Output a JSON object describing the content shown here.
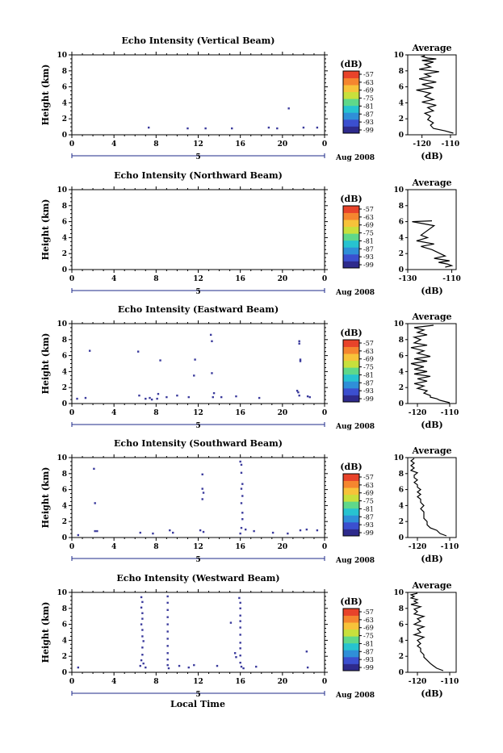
{
  "page": {
    "footer_label": "Local Time",
    "date_label": "Aug 2008",
    "day_label": "5"
  },
  "colorbar": {
    "unit": "(dB)",
    "ticks": [
      "-57",
      "-63",
      "-69",
      "-75",
      "-81",
      "-87",
      "-93",
      "-99"
    ],
    "colors": [
      "#2e2a8c",
      "#3b4fcf",
      "#2f8fd8",
      "#27c3d0",
      "#5fd88a",
      "#c8e03c",
      "#f7c33a",
      "#f5862f",
      "#e8432a"
    ]
  },
  "chart_data": [
    {
      "type": "heatmap",
      "title": "Echo Intensity (Vertical Beam)",
      "xlabel": "",
      "ylabel": "Height (km)",
      "xlim": [
        0,
        24
      ],
      "ylim": [
        0,
        10
      ],
      "xticks": [
        "0",
        "4",
        "8",
        "12",
        "16",
        "20",
        "0"
      ],
      "yticks": [
        "0",
        "2",
        "4",
        "6",
        "8",
        "10"
      ],
      "echoes": [
        [
          7.3,
          0.9
        ],
        [
          11.0,
          0.8
        ],
        [
          12.7,
          0.8
        ],
        [
          15.2,
          0.8
        ],
        [
          18.7,
          0.9
        ],
        [
          19.5,
          0.8
        ],
        [
          20.6,
          3.3
        ],
        [
          22.0,
          0.9
        ],
        [
          23.3,
          0.9
        ]
      ],
      "profile": {
        "title": "Average",
        "xlabel": "(dB)",
        "xlim": [
          -125,
          -108
        ],
        "xticks": [
          "-120",
          "-110"
        ],
        "yticks": [
          "0",
          "2",
          "4",
          "6",
          "8",
          "10"
        ],
        "x": [
          -109,
          -112,
          -116,
          -117,
          -116,
          -118,
          -117,
          -119,
          -116,
          -118,
          -115,
          -120,
          -116,
          -119,
          -117,
          -122,
          -116,
          -120,
          -115,
          -121,
          -117,
          -119,
          -114,
          -121,
          -117,
          -119,
          -116,
          -120,
          -115,
          -118,
          -120,
          -119
        ],
        "y": [
          0.2,
          0.5,
          0.8,
          1.2,
          1.5,
          1.9,
          2.3,
          2.7,
          3.0,
          3.4,
          3.7,
          4.1,
          4.4,
          4.8,
          5.2,
          5.6,
          5.9,
          6.3,
          6.6,
          7.0,
          7.3,
          7.6,
          7.9,
          8.2,
          8.5,
          8.8,
          9.1,
          9.3,
          9.5,
          9.6,
          9.8,
          9.9
        ]
      }
    },
    {
      "type": "heatmap",
      "title": "Echo Intensity (Northward Beam)",
      "xlabel": "",
      "ylabel": "Height (km)",
      "xlim": [
        0,
        24
      ],
      "ylim": [
        0,
        10
      ],
      "xticks": [
        "0",
        "4",
        "8",
        "12",
        "16",
        "20",
        "0"
      ],
      "yticks": [
        "0",
        "2",
        "4",
        "6",
        "8",
        "10"
      ],
      "echoes": [],
      "profile": {
        "title": "Average",
        "xlabel": "(dB)",
        "xlim": [
          -130,
          -108
        ],
        "xticks": [
          "-130",
          "-110"
        ],
        "yticks": [
          "0",
          "2",
          "4",
          "6",
          "8",
          "10"
        ],
        "x": [
          -113,
          -110,
          -112,
          -116,
          -111,
          -118,
          -113,
          -119,
          -124,
          -118,
          -126,
          -121,
          -124,
          -118,
          -124,
          -128,
          -119
        ],
        "y": [
          0.3,
          0.5,
          0.7,
          0.9,
          1.1,
          1.4,
          1.7,
          2.5,
          2.9,
          3.2,
          3.6,
          4.0,
          4.3,
          5.5,
          5.8,
          6.0,
          6.1
        ]
      }
    },
    {
      "type": "heatmap",
      "title": "Echo Intensity (Eastward Beam)",
      "xlabel": "",
      "ylabel": "Height (km)",
      "xlim": [
        0,
        24
      ],
      "ylim": [
        0,
        10
      ],
      "xticks": [
        "0",
        "4",
        "8",
        "12",
        "16",
        "20",
        "0"
      ],
      "yticks": [
        "0",
        "2",
        "4",
        "6",
        "8",
        "10"
      ],
      "echoes": [
        [
          1.7,
          6.6
        ],
        [
          6.3,
          6.5
        ],
        [
          6.4,
          1.0
        ],
        [
          7.0,
          0.6
        ],
        [
          7.4,
          0.7
        ],
        [
          7.6,
          0.5
        ],
        [
          8.1,
          0.6
        ],
        [
          8.2,
          1.2
        ],
        [
          8.4,
          5.4
        ],
        [
          9.0,
          0.8
        ],
        [
          10.0,
          1.0
        ],
        [
          11.1,
          0.8
        ],
        [
          11.7,
          5.5
        ],
        [
          11.6,
          3.5
        ],
        [
          13.2,
          8.6
        ],
        [
          13.3,
          7.8
        ],
        [
          13.3,
          3.8
        ],
        [
          13.5,
          1.3
        ],
        [
          13.4,
          0.8
        ],
        [
          14.2,
          0.8
        ],
        [
          15.6,
          0.9
        ],
        [
          17.8,
          0.7
        ],
        [
          21.4,
          1.6
        ],
        [
          21.5,
          1.4
        ],
        [
          21.6,
          7.8
        ],
        [
          21.6,
          7.5
        ],
        [
          21.7,
          5.5
        ],
        [
          21.7,
          5.3
        ],
        [
          21.6,
          1.0
        ],
        [
          22.4,
          0.9
        ],
        [
          22.6,
          0.8
        ],
        [
          0.5,
          0.6
        ],
        [
          1.3,
          0.7
        ]
      ],
      "profile": {
        "title": "Average",
        "xlabel": "(dB)",
        "xlim": [
          -123,
          -108
        ],
        "xticks": [
          "-120",
          "-110"
        ],
        "yticks": [
          "0",
          "2",
          "4",
          "6",
          "8",
          "10"
        ],
        "x": [
          -110,
          -113,
          -114,
          -116,
          -116,
          -118,
          -117,
          -120,
          -118,
          -121,
          -117,
          -120,
          -116,
          -121,
          -117,
          -121,
          -118,
          -122,
          -117,
          -121,
          -116,
          -120,
          -118,
          -122,
          -117,
          -121,
          -119,
          -121,
          -117,
          -120,
          -118,
          -121,
          -115
        ],
        "y": [
          0.1,
          0.4,
          0.6,
          0.8,
          1.0,
          1.3,
          1.6,
          1.9,
          2.2,
          2.5,
          2.8,
          3.1,
          3.4,
          3.7,
          4.0,
          4.3,
          4.6,
          5.0,
          5.3,
          5.6,
          5.9,
          6.3,
          6.6,
          7.0,
          7.3,
          7.6,
          8.0,
          8.3,
          8.6,
          8.9,
          9.2,
          9.5,
          9.8
        ]
      }
    },
    {
      "type": "heatmap",
      "title": "Echo Intensity (Southward Beam)",
      "xlabel": "",
      "ylabel": "Height (km)",
      "xlim": [
        0,
        24
      ],
      "ylim": [
        0,
        10
      ],
      "xticks": [
        "0",
        "4",
        "8",
        "12",
        "16",
        "20",
        "0"
      ],
      "yticks": [
        "0",
        "2",
        "4",
        "6",
        "8",
        "10"
      ],
      "echoes": [
        [
          0.6,
          0.3
        ],
        [
          2.1,
          8.6
        ],
        [
          2.2,
          4.3
        ],
        [
          2.2,
          0.8
        ],
        [
          2.4,
          0.8
        ],
        [
          6.5,
          0.6
        ],
        [
          7.7,
          0.5
        ],
        [
          9.3,
          0.9
        ],
        [
          9.6,
          0.6
        ],
        [
          12.2,
          0.9
        ],
        [
          12.4,
          7.9
        ],
        [
          12.4,
          6.1
        ],
        [
          12.5,
          5.6
        ],
        [
          12.4,
          4.8
        ],
        [
          12.5,
          0.7
        ],
        [
          16.0,
          9.5
        ],
        [
          16.1,
          9.1
        ],
        [
          16.1,
          8.1
        ],
        [
          16.2,
          6.7
        ],
        [
          16.1,
          6.1
        ],
        [
          16.2,
          5.2
        ],
        [
          16.1,
          4.3
        ],
        [
          16.2,
          3.1
        ],
        [
          16.2,
          2.3
        ],
        [
          16.1,
          1.2
        ],
        [
          16.0,
          0.5
        ],
        [
          16.5,
          1.0
        ],
        [
          17.3,
          0.8
        ],
        [
          19.1,
          0.6
        ],
        [
          20.5,
          0.5
        ],
        [
          21.7,
          0.9
        ],
        [
          22.3,
          1.0
        ],
        [
          23.3,
          0.9
        ]
      ],
      "profile": {
        "title": "Average",
        "xlabel": "(dB)",
        "xlim": [
          -123,
          -108
        ],
        "xticks": [
          "-120",
          "-110"
        ],
        "yticks": [
          "0",
          "2",
          "4",
          "6",
          "8",
          "10"
        ],
        "x": [
          -111,
          -113,
          -114,
          -116,
          -117,
          -117,
          -118,
          -118,
          -118,
          -119,
          -118,
          -119,
          -119,
          -120,
          -119,
          -120,
          -119,
          -120,
          -120,
          -121,
          -120,
          -121,
          -121,
          -120,
          -122,
          -121,
          -122,
          -121,
          -122,
          -121
        ],
        "y": [
          0.2,
          0.5,
          0.9,
          1.2,
          1.6,
          2.0,
          2.4,
          2.8,
          3.2,
          3.6,
          4.0,
          4.4,
          4.8,
          5.1,
          5.4,
          5.7,
          6.0,
          6.3,
          6.6,
          6.9,
          7.2,
          7.5,
          7.8,
          8.1,
          8.4,
          8.7,
          9.0,
          9.3,
          9.6,
          9.9
        ]
      }
    },
    {
      "type": "heatmap",
      "title": "Echo Intensity (Westward Beam)",
      "xlabel": "",
      "ylabel": "Height (km)",
      "xlim": [
        0,
        24
      ],
      "ylim": [
        0,
        10
      ],
      "xticks": [
        "0",
        "4",
        "8",
        "12",
        "16",
        "20",
        "0"
      ],
      "yticks": [
        "0",
        "2",
        "4",
        "6",
        "8",
        "10"
      ],
      "echoes": [
        [
          0.6,
          0.6
        ],
        [
          6.6,
          9.4
        ],
        [
          6.7,
          8.8
        ],
        [
          6.6,
          8.1
        ],
        [
          6.7,
          7.4
        ],
        [
          6.7,
          6.7
        ],
        [
          6.6,
          6.0
        ],
        [
          6.7,
          5.3
        ],
        [
          6.7,
          4.5
        ],
        [
          6.8,
          3.9
        ],
        [
          6.7,
          3.1
        ],
        [
          6.7,
          2.2
        ],
        [
          6.6,
          1.5
        ],
        [
          6.8,
          1.1
        ],
        [
          6.5,
          0.8
        ],
        [
          7.0,
          0.6
        ],
        [
          9.1,
          9.5
        ],
        [
          9.1,
          8.7
        ],
        [
          9.1,
          7.8
        ],
        [
          9.1,
          6.9
        ],
        [
          9.1,
          6.0
        ],
        [
          9.1,
          5.1
        ],
        [
          9.1,
          4.2
        ],
        [
          9.1,
          3.3
        ],
        [
          9.1,
          2.4
        ],
        [
          9.1,
          1.6
        ],
        [
          9.1,
          0.9
        ],
        [
          9.2,
          0.5
        ],
        [
          10.2,
          0.8
        ],
        [
          11.1,
          0.6
        ],
        [
          11.6,
          0.9
        ],
        [
          13.8,
          0.8
        ],
        [
          15.1,
          6.2
        ],
        [
          15.5,
          2.4
        ],
        [
          15.6,
          1.9
        ],
        [
          15.9,
          9.3
        ],
        [
          16.0,
          8.7
        ],
        [
          16.0,
          8.0
        ],
        [
          16.0,
          7.1
        ],
        [
          16.0,
          6.4
        ],
        [
          16.0,
          5.6
        ],
        [
          16.0,
          4.7
        ],
        [
          16.0,
          3.7
        ],
        [
          16.0,
          3.0
        ],
        [
          16.0,
          2.1
        ],
        [
          16.0,
          1.2
        ],
        [
          16.1,
          0.7
        ],
        [
          16.3,
          0.5
        ],
        [
          17.5,
          0.7
        ],
        [
          22.3,
          2.6
        ],
        [
          22.4,
          0.6
        ]
      ],
      "profile": {
        "title": "Average",
        "xlabel": "(dB)",
        "xlim": [
          -123,
          -108
        ],
        "xticks": [
          "-120",
          "-110"
        ],
        "yticks": [
          "0",
          "2",
          "4",
          "6",
          "8",
          "10"
        ],
        "x": [
          -112,
          -114,
          -115,
          -116,
          -117,
          -118,
          -118,
          -119,
          -119,
          -120,
          -119,
          -120,
          -118,
          -121,
          -119,
          -120,
          -118,
          -121,
          -119,
          -120,
          -118,
          -121,
          -120,
          -121,
          -119,
          -122,
          -120,
          -121,
          -120,
          -122,
          -121,
          -122,
          -120
        ],
        "y": [
          0.2,
          0.5,
          0.8,
          1.1,
          1.5,
          1.9,
          2.2,
          2.6,
          3.0,
          3.3,
          3.6,
          4.0,
          4.4,
          4.7,
          5.0,
          5.4,
          5.7,
          6.0,
          6.4,
          6.7,
          7.0,
          7.3,
          7.6,
          7.9,
          8.2,
          8.5,
          8.7,
          8.9,
          9.1,
          9.3,
          9.5,
          9.7,
          9.9
        ]
      }
    }
  ]
}
